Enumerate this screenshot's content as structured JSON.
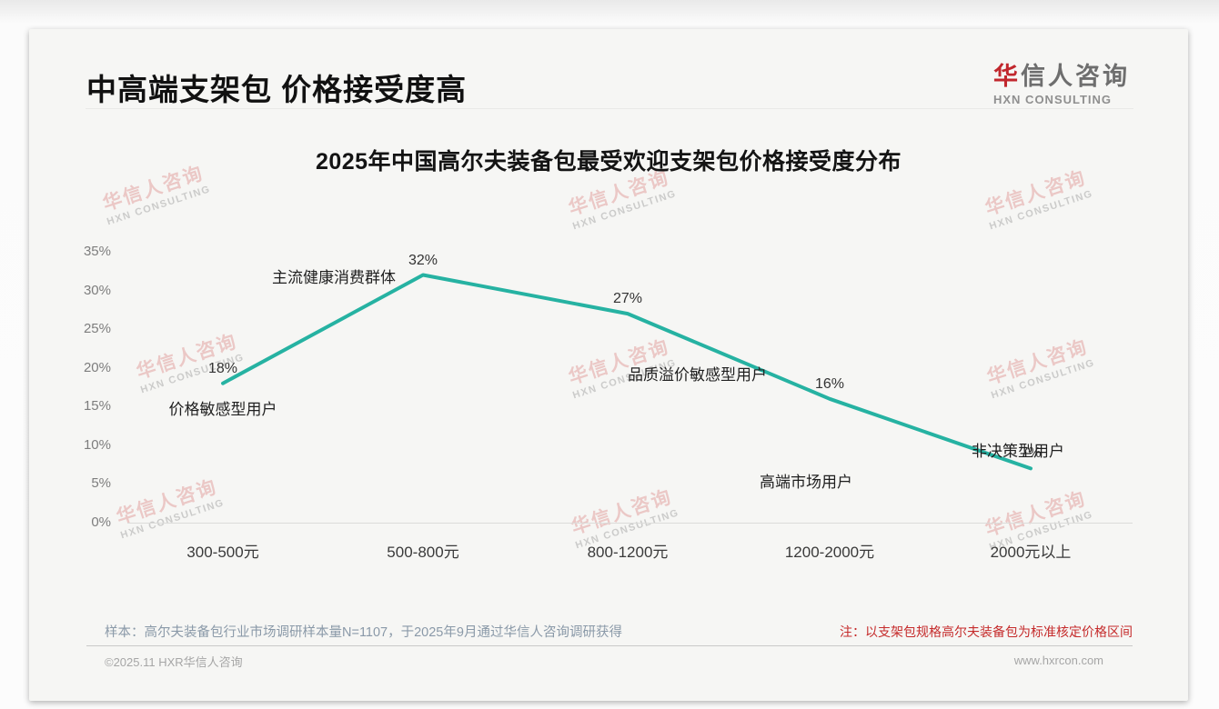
{
  "header": {
    "title": "中高端支架包 价格接受度高",
    "logo": {
      "accent_char": "华",
      "rest_chars": "信人咨询",
      "subtitle": "HXN CONSULTING"
    }
  },
  "watermark": {
    "line1": "华信人咨询",
    "line2": "HXN CONSULTING"
  },
  "chart_data": {
    "type": "line",
    "title": "2025年中国高尔夫装备包最受欢迎支架包价格接受度分布",
    "categories": [
      "300-500元",
      "500-800元",
      "800-1200元",
      "1200-2000元",
      "2000元以上"
    ],
    "series": [
      {
        "name": "价格接受度",
        "values": [
          18,
          32,
          27,
          16,
          7
        ]
      }
    ],
    "value_labels": [
      "18%",
      "32%",
      "27%",
      "16%",
      "7%"
    ],
    "point_annotations": [
      "价格敏感型用户",
      "主流健康消费群体",
      "品质溢价敏感型用户",
      "高端市场用户",
      "非决策型用户"
    ],
    "xlabel": "",
    "ylabel": "",
    "ylim": [
      0,
      35
    ],
    "y_ticks": [
      {
        "label": "35%",
        "value": 35
      },
      {
        "label": "30%",
        "value": 30
      },
      {
        "label": "25%",
        "value": 25
      },
      {
        "label": "20%",
        "value": 20
      },
      {
        "label": "15%",
        "value": 15
      },
      {
        "label": "10%",
        "value": 10
      },
      {
        "label": "5%",
        "value": 5
      },
      {
        "label": "0%",
        "value": 0
      }
    ],
    "grid": false,
    "legend": "none",
    "line_color": "#26b2a2"
  },
  "footer": {
    "sample_note": "样本：高尔夫装备包行业市场调研样本量N=1107，于2025年9月通过华信人咨询调研获得",
    "price_note": "注：以支架包规格高尔夫装备包为标准核定价格区间",
    "copyright": "©2025.11 HXR华信人咨询",
    "website": "www.hxrcon.com"
  },
  "colors": {
    "accent_red": "#c1272d",
    "note_red": "#c52b2b",
    "line_teal": "#26b2a2"
  }
}
